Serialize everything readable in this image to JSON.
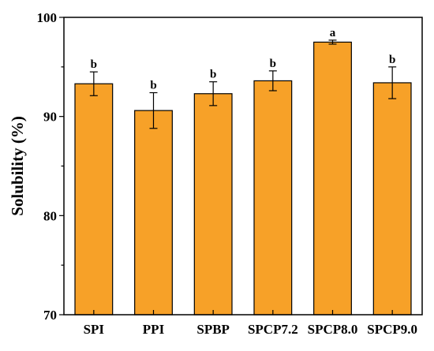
{
  "chart_data": {
    "type": "bar",
    "title": "",
    "xlabel": "",
    "ylabel": "Solubility (%)",
    "ylim": [
      70,
      100
    ],
    "yticks": [
      "70",
      "80",
      "90",
      "100"
    ],
    "grid": false,
    "bar_color": "#F7A128",
    "categories": [
      "SPI",
      "PPI",
      "SPBP",
      "SPCP7.2",
      "SPCP8.0",
      "SPCP9.0"
    ],
    "values": [
      93.3,
      90.6,
      92.3,
      93.6,
      97.5,
      93.4
    ],
    "errors": [
      1.2,
      1.8,
      1.2,
      1.0,
      0.2,
      1.6
    ],
    "significance": [
      "b",
      "b",
      "b",
      "b",
      "a",
      "b"
    ]
  }
}
